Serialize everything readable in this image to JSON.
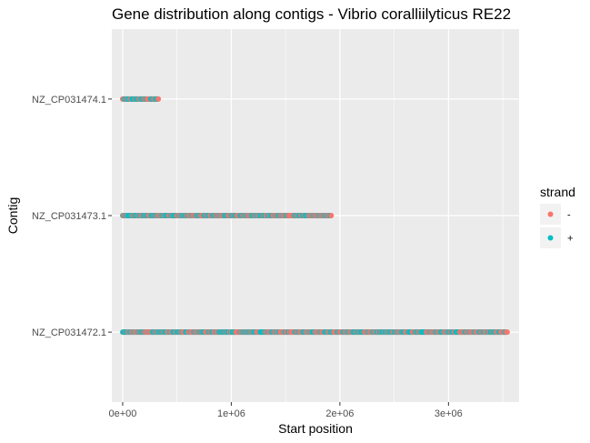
{
  "chart_data": {
    "type": "scatter",
    "title": "Gene distribution along contigs - Vibrio coralliilyticus RE22",
    "xlabel": "Start position",
    "ylabel": "Contig",
    "xlim": [
      -100000,
      3650000
    ],
    "x_ticks": [
      {
        "value": 0,
        "label": "0e+00"
      },
      {
        "value": 1000000,
        "label": "1e+06"
      },
      {
        "value": 2000000,
        "label": "2e+06"
      },
      {
        "value": 3000000,
        "label": "3e+06"
      }
    ],
    "categories": [
      "NZ_CP031472.1",
      "NZ_CP031473.1",
      "NZ_CP031474.1"
    ],
    "contig_ranges": [
      {
        "contig": "NZ_CP031472.1",
        "min": 0,
        "max": 3540000
      },
      {
        "contig": "NZ_CP031473.1",
        "min": 0,
        "max": 1920000
      },
      {
        "contig": "NZ_CP031474.1",
        "min": 0,
        "max": 330000
      }
    ],
    "legend": {
      "title": "strand",
      "position": "right",
      "entries": [
        {
          "label": "-",
          "color": "#F8766D"
        },
        {
          "label": "+",
          "color": "#00BFC4"
        }
      ]
    },
    "grid": true,
    "panel_background": "#EBEBEB"
  }
}
